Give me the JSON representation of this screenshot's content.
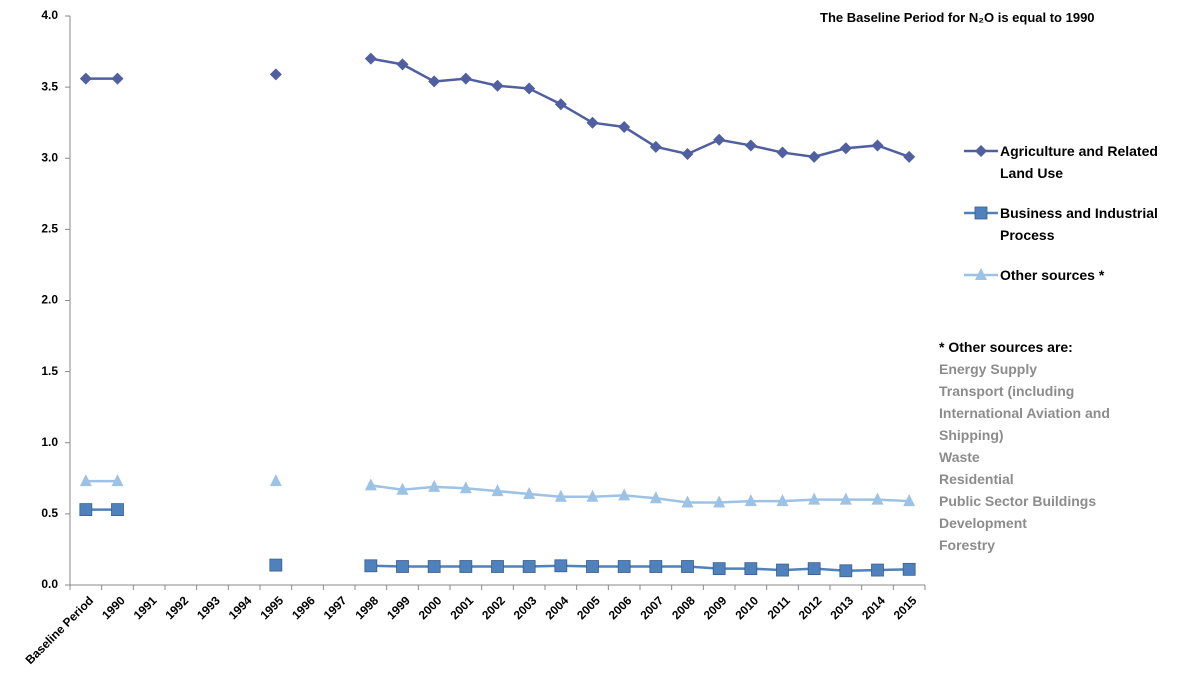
{
  "chart_data": {
    "type": "line",
    "title": "The Baseline Period for N₂O is equal to 1990",
    "categories": [
      "Baseline Period",
      "1990",
      "1991",
      "1992",
      "1993",
      "1994",
      "1995",
      "1996",
      "1997",
      "1998",
      "1999",
      "2000",
      "2001",
      "2002",
      "2003",
      "2004",
      "2005",
      "2006",
      "2007",
      "2008",
      "2009",
      "2010",
      "2011",
      "2012",
      "2013",
      "2014",
      "2015"
    ],
    "series": [
      {
        "name": "Agriculture and Related Land Use",
        "color": "#4f5f9f",
        "marker": "diamond",
        "values": [
          3.56,
          3.56,
          null,
          null,
          null,
          null,
          3.59,
          null,
          null,
          3.7,
          3.66,
          3.54,
          3.56,
          3.51,
          3.49,
          3.38,
          3.25,
          3.22,
          3.08,
          3.03,
          3.13,
          3.09,
          3.04,
          3.01,
          3.07,
          3.09,
          3.01
        ]
      },
      {
        "name": "Business and Industrial Process",
        "color": "#4f81bd",
        "marker": "square",
        "values": [
          0.53,
          0.53,
          null,
          null,
          null,
          null,
          0.14,
          null,
          null,
          0.135,
          0.13,
          0.13,
          0.13,
          0.13,
          0.13,
          0.135,
          0.13,
          0.13,
          0.13,
          0.13,
          0.115,
          0.115,
          0.105,
          0.115,
          0.1,
          0.105,
          0.11
        ]
      },
      {
        "name": "Other sources *",
        "color": "#9cc2e5",
        "marker": "triangle",
        "values": [
          0.73,
          0.73,
          null,
          null,
          null,
          null,
          0.73,
          null,
          null,
          0.7,
          0.67,
          0.69,
          0.68,
          0.66,
          0.64,
          0.62,
          0.62,
          0.63,
          0.61,
          0.58,
          0.58,
          0.59,
          0.59,
          0.6,
          0.6,
          0.6,
          0.59
        ]
      }
    ],
    "ylim": [
      0,
      4
    ],
    "yticks": [
      {
        "value": 0,
        "label": "0.0"
      },
      {
        "value": 0.5,
        "label": "0.5"
      },
      {
        "value": 1,
        "label": "1.0"
      },
      {
        "value": 1.5,
        "label": "1.5"
      },
      {
        "value": 2,
        "label": "2.0"
      },
      {
        "value": 2.5,
        "label": "2.5"
      },
      {
        "value": 3,
        "label": "3.0"
      },
      {
        "value": 3.5,
        "label": "3.5"
      },
      {
        "value": 4,
        "label": "4.0"
      }
    ],
    "grid": false,
    "legend": "right",
    "note": {
      "title": "* Other sources are:",
      "items": [
        "Energy Supply",
        "Transport (including International Aviation and Shipping)",
        "Waste",
        "Residential",
        "Public Sector Buildings",
        "Development",
        "Forestry"
      ]
    }
  }
}
